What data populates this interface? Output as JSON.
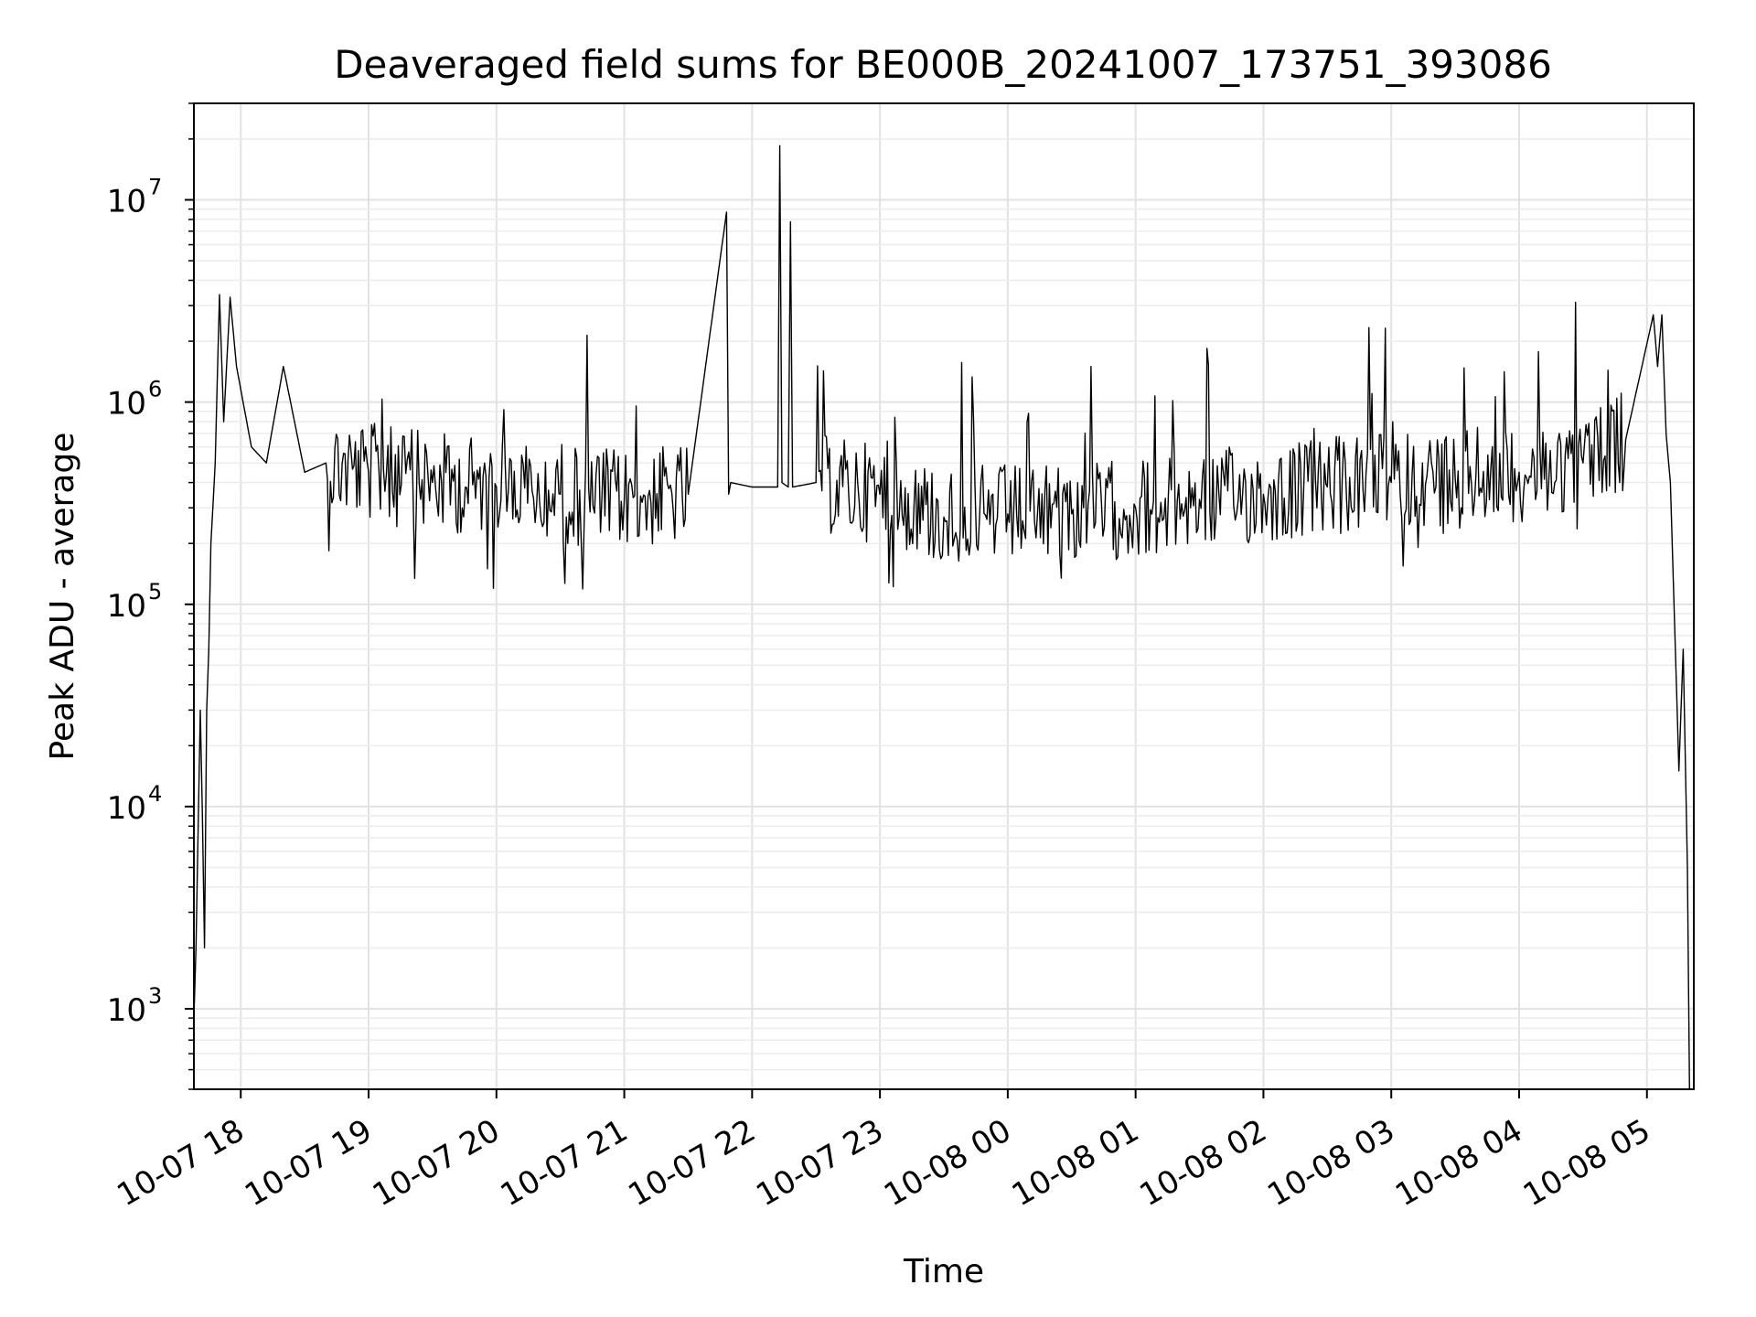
{
  "chart_data": {
    "type": "line",
    "title": "Deaveraged field sums for BE000B_20241007_173751_393086",
    "xlabel": "Time",
    "ylabel": "Peak ADU - average",
    "yscale": "log",
    "ylim": [
      400,
      30000000
    ],
    "xlim": [
      "2024-10-07 17:38",
      "2024-10-08 05:22"
    ],
    "grid": true,
    "series_color": "#000000",
    "x_ticks": [
      {
        "value": "2024-10-07 18:00",
        "label": "10-07 18"
      },
      {
        "value": "2024-10-07 19:00",
        "label": "10-07 19"
      },
      {
        "value": "2024-10-07 20:00",
        "label": "10-07 20"
      },
      {
        "value": "2024-10-07 21:00",
        "label": "10-07 21"
      },
      {
        "value": "2024-10-07 22:00",
        "label": "10-07 22"
      },
      {
        "value": "2024-10-07 23:00",
        "label": "10-07 23"
      },
      {
        "value": "2024-10-08 00:00",
        "label": "10-08 00"
      },
      {
        "value": "2024-10-08 01:00",
        "label": "10-08 01"
      },
      {
        "value": "2024-10-08 02:00",
        "label": "10-08 02"
      },
      {
        "value": "2024-10-08 03:00",
        "label": "10-08 03"
      },
      {
        "value": "2024-10-08 04:00",
        "label": "10-08 04"
      },
      {
        "value": "2024-10-08 05:00",
        "label": "10-08 05"
      }
    ],
    "y_ticks": [
      {
        "value": 1000,
        "base": "10",
        "exp": "3"
      },
      {
        "value": 10000,
        "base": "10",
        "exp": "4"
      },
      {
        "value": 100000,
        "base": "10",
        "exp": "5"
      },
      {
        "value": 1000000,
        "base": "10",
        "exp": "6"
      },
      {
        "value": 10000000,
        "base": "10",
        "exp": "7"
      }
    ],
    "series": [
      {
        "x": [
          "2024-10-07 17:38",
          "2024-10-07 17:39",
          "2024-10-07 17:40",
          "2024-10-07 17:41",
          "2024-10-07 17:42",
          "2024-10-07 17:43",
          "2024-10-07 17:44",
          "2024-10-07 17:45",
          "2024-10-07 17:46",
          "2024-10-07 17:48",
          "2024-10-07 17:50",
          "2024-10-07 17:52",
          "2024-10-07 17:55",
          "2024-10-07 17:58",
          "2024-10-07 18:05",
          "2024-10-07 18:12",
          "2024-10-07 18:20",
          "2024-10-07 18:30",
          "2024-10-07 18:40",
          "2024-10-07 19:00",
          "2024-10-07 19:30",
          "2024-10-07 20:00",
          "2024-10-07 20:30",
          "2024-10-07 21:00",
          "2024-10-07 21:30",
          "2024-10-07 21:48",
          "2024-10-07 21:49",
          "2024-10-07 21:50",
          "2024-10-07 22:00",
          "2024-10-07 22:12",
          "2024-10-07 22:13",
          "2024-10-07 22:14",
          "2024-10-07 22:17",
          "2024-10-07 22:18",
          "2024-10-07 22:19",
          "2024-10-07 22:30",
          "2024-10-07 23:00",
          "2024-10-07 23:30",
          "2024-10-08 00:00",
          "2024-10-08 00:30",
          "2024-10-08 01:00",
          "2024-10-08 01:30",
          "2024-10-08 02:00",
          "2024-10-08 02:30",
          "2024-10-08 03:00",
          "2024-10-08 03:30",
          "2024-10-08 04:00",
          "2024-10-08 04:30",
          "2024-10-08 04:50",
          "2024-10-08 05:03",
          "2024-10-08 05:05",
          "2024-10-08 05:07",
          "2024-10-08 05:09",
          "2024-10-08 05:11",
          "2024-10-08 05:13",
          "2024-10-08 05:15",
          "2024-10-08 05:17",
          "2024-10-08 05:19",
          "2024-10-08 05:20"
        ],
        "y": [
          900,
          2000,
          8000,
          30000,
          9000,
          2000,
          30000,
          60000,
          200000,
          500000,
          3400000,
          800000,
          3300000,
          1500000,
          600000,
          500000,
          1500000,
          450000,
          500000,
          450000,
          400000,
          380000,
          350000,
          330000,
          350000,
          8700000,
          350000,
          400000,
          380000,
          380000,
          18500000,
          400000,
          380000,
          7800000,
          380000,
          400000,
          350000,
          270000,
          280000,
          280000,
          300000,
          330000,
          350000,
          380000,
          400000,
          420000,
          450000,
          500000,
          650000,
          2700000,
          1500000,
          2700000,
          700000,
          400000,
          80000,
          15000,
          60000,
          5000,
          400
        ]
      }
    ]
  }
}
